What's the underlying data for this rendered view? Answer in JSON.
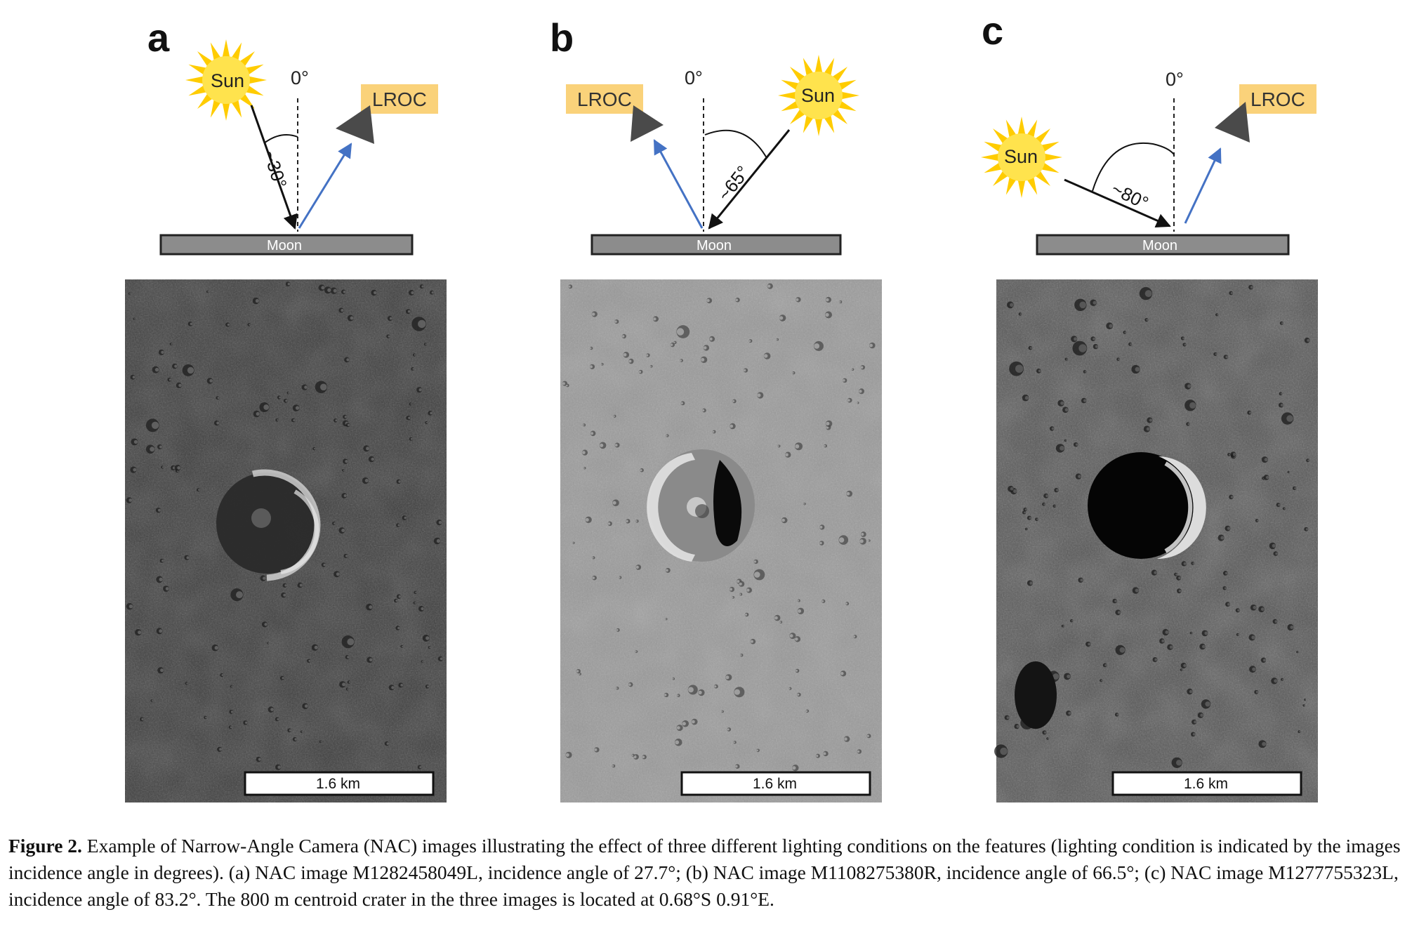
{
  "panels": [
    {
      "letter": "a",
      "sun_label": "Sun",
      "lroc_label": "LROC",
      "zero_label": "0°",
      "angle_label": "~30°",
      "moon_label": "Moon",
      "scale_label": "1.6 km",
      "image_tone": "dark",
      "sun_side": "left",
      "lroc_side": "right"
    },
    {
      "letter": "b",
      "sun_label": "Sun",
      "lroc_label": "LROC",
      "zero_label": "0°",
      "angle_label": "~65°",
      "moon_label": "Moon",
      "scale_label": "1.6 km",
      "image_tone": "light",
      "sun_side": "right",
      "lroc_side": "left"
    },
    {
      "letter": "c",
      "sun_label": "Sun",
      "lroc_label": "LROC",
      "zero_label": "0°",
      "angle_label": "~80°",
      "moon_label": "Moon",
      "scale_label": "1.6 km",
      "image_tone": "dark",
      "sun_side": "left",
      "lroc_side": "right"
    }
  ],
  "caption": {
    "label": "Figure 2.",
    "text": "Example of Narrow-Angle Camera (NAC) images illustrating the effect of three different lighting conditions on the features (lighting condition is indicated by the images incidence angle in degrees). (a) NAC image M1282458049L, incidence angle of 27.7°; (b) NAC image M1108275380R, incidence angle of 66.5°; (c) NAC image M1277755323L, incidence angle of 83.2°. The 800 m centroid crater in the three images is located at 0.68°S 0.91°E."
  },
  "colors": {
    "sun": "#FFCC00",
    "sun_core": "#FFE34D",
    "lroc_box": "#FAD27A",
    "lroc_triangle": "#4A4A4A",
    "reflect_arrow": "#4472C4",
    "moon_bar": "#8C8C8C",
    "incident_arrow": "#111111"
  }
}
